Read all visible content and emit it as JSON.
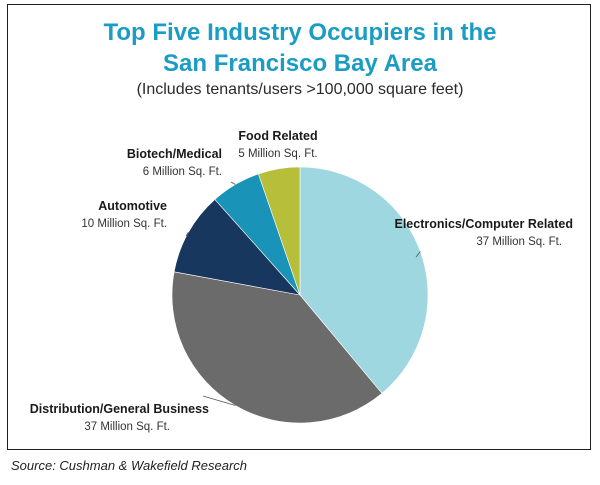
{
  "header": {
    "title_line1": "Top Five Industry Occupiers in the",
    "title_line2": "San Francisco Bay Area",
    "subtitle": "(Includes tenants/users >100,000 square feet)"
  },
  "source": "Source: Cushman & Wakefield Research",
  "colors": {
    "title": "#1b9cc4",
    "electronics": "#9ed7e0",
    "distribution": "#6b6b6b",
    "automotive": "#17375e",
    "biotech": "#1a93b8",
    "food": "#b7be3a"
  },
  "chart_data": {
    "type": "pie",
    "title": "Top Five Industry Occupiers in the San Francisco Bay Area",
    "subtitle": "(Includes tenants/users >100,000 square feet)",
    "unit": "Million Sq. Ft.",
    "slices": [
      {
        "label": "Electronics/Computer Related",
        "value": 37,
        "value_label": "37 Million Sq. Ft.",
        "color": "#9ed7e0"
      },
      {
        "label": "Distribution/General Business",
        "value": 37,
        "value_label": "37 Million Sq. Ft.",
        "color": "#6b6b6b"
      },
      {
        "label": "Automotive",
        "value": 10,
        "value_label": "10 Million Sq. Ft.",
        "color": "#17375e"
      },
      {
        "label": "Biotech/Medical",
        "value": 6,
        "value_label": "6 Million Sq. Ft.",
        "color": "#1a93b8"
      },
      {
        "label": "Food Related",
        "value": 5,
        "value_label": "5 Million Sq. Ft.",
        "color": "#b7be3a"
      }
    ]
  }
}
